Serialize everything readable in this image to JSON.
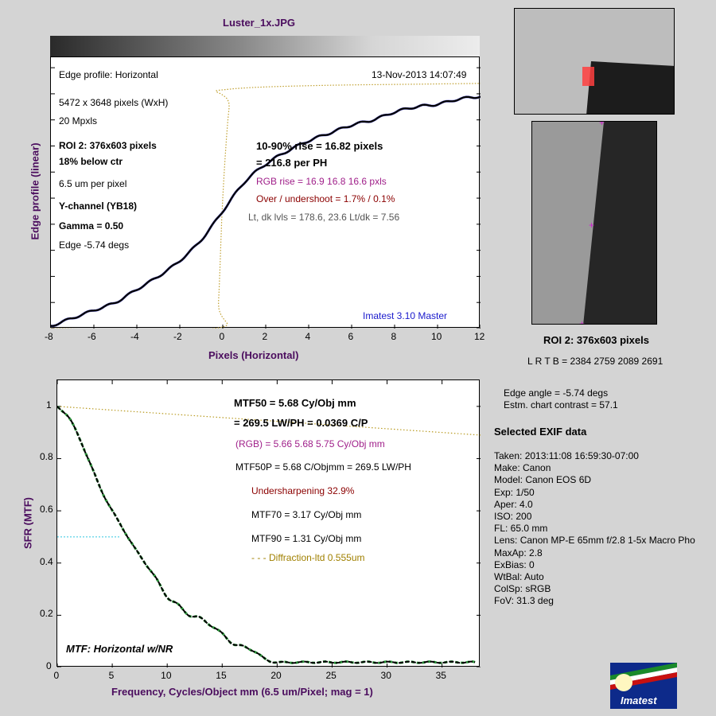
{
  "title": "Luster_1x.JPG",
  "edge": {
    "header_left": "Edge profile: Horizontal",
    "header_date": "13-Nov-2013 14:07:49",
    "info": [
      "5472 x 3648 pixels (WxH)",
      "20 Mpxls"
    ],
    "roi": [
      "ROI 2:  376x603 pixels",
      "18% below ctr"
    ],
    "um": "6.5 um per pixel",
    "channel": "Y-channel  (YB18)",
    "gamma": "Gamma = 0.50",
    "angle": "Edge -5.74 degs",
    "rise1": "10-90% rise = 16.82 pixels",
    "rise2": "= 216.8 per PH",
    "rgb_rise": "RGB rise = 16.9  16.8  16.6 pxls",
    "overshoot": "Over / undershoot = 1.7% / 0.1%",
    "levels": "Lt, dk lvls = 178.6, 23.6   Lt/dk = 7.56",
    "version": "Imatest 3.10 Master",
    "ylabel": "Edge profile (linear)",
    "xlabel": "Pixels (Horizontal)"
  },
  "roi_panel": {
    "label": "ROI 2:  376x603 pixels",
    "bounds": "L R  T B = 2384 2759  2089 2691"
  },
  "mtf": {
    "mtf50_line1": "MTF50 = 5.68 Cy/Obj mm",
    "mtf50_line2": "= 269.5 LW/PH = 0.0369 C/P",
    "rgb": "(RGB) = 5.66  5.68  5.75 Cy/Obj mm",
    "mtf50p": "MTF50P = 5.68 C/Objmm = 269.5 LW/PH",
    "undersharp": "Undersharpening 32.9%",
    "mtf70": "MTF70 = 3.17 Cy/Obj mm",
    "mtf90": "MTF90 = 1.31 Cy/Obj mm",
    "diffraction": "- - -  Diffraction-ltd  0.555um",
    "corner": "MTF: Horizontal w/NR",
    "ylabel": "SFR (MTF)",
    "xlabel": "Frequency, Cycles/Object mm  (6.5 um/Pixel;  mag = 1)"
  },
  "side": {
    "edge_angle": "Edge angle = -5.74 degs",
    "contrast": "Estm. chart contrast = 57.1",
    "exif_title": "Selected EXIF data",
    "exif": [
      "Taken: 2013:11:08 16:59:30-07:00",
      "Make:  Canon",
      "Model:  Canon EOS 6D",
      "Exp:     1/50",
      "Aper:   4.0",
      "ISO:    200",
      "FL:      65.0 mm",
      "Lens:    Canon MP-E 65mm f/2.8 1-5x Macro Pho",
      "MaxAp: 2.8",
      "ExBias: 0",
      "WtBal: Auto",
      "ColSp: sRGB",
      "FoV:   31.3 deg"
    ]
  },
  "logo": {
    "text": "Imatest"
  },
  "chart_data": [
    {
      "type": "line",
      "title": "Edge profile: Horizontal",
      "xlabel": "Pixels (Horizontal)",
      "ylabel": "Edge profile (linear)",
      "xlim": [
        -8,
        12
      ],
      "ylim": [
        0,
        1.04
      ],
      "xticks": [
        -8,
        -6,
        -4,
        -2,
        0,
        2,
        4,
        6,
        8,
        10,
        12
      ],
      "grid": false,
      "series": [
        {
          "x": [
            -8,
            -7,
            -6,
            -5,
            -4,
            -3,
            -2,
            -1,
            0,
            1,
            2,
            3,
            4,
            5,
            6,
            7,
            8,
            9,
            10,
            11,
            12
          ],
          "y": [
            0.01,
            0.04,
            0.07,
            0.1,
            0.15,
            0.2,
            0.26,
            0.34,
            0.45,
            0.56,
            0.63,
            0.68,
            0.72,
            0.75,
            0.78,
            0.8,
            0.83,
            0.85,
            0.86,
            0.88,
            0.89
          ]
        },
        {
          "x": [
            -8,
            -0.4,
            -0.2,
            0,
            0.3,
            0.6,
            12
          ],
          "y": [
            0,
            0,
            0.1,
            0.5,
            0.85,
            0.92,
            0.94
          ]
        }
      ]
    },
    {
      "type": "line",
      "title": "MTF: Horizontal w/NR",
      "xlabel": "Frequency, Cycles/Object mm  (6.5 um/Pixel;  mag = 1)",
      "ylabel": "SFR (MTF)",
      "xlim": [
        0,
        38.5
      ],
      "ylim": [
        0,
        1.1
      ],
      "xticks": [
        0,
        5,
        10,
        15,
        20,
        25,
        30,
        35
      ],
      "yticks": [
        0,
        0.2,
        0.4,
        0.6,
        0.8,
        1
      ],
      "grid": false,
      "series": [
        {
          "name": "MTF",
          "x": [
            0,
            1,
            2,
            3,
            4,
            5,
            6,
            7,
            8,
            9,
            10,
            11,
            12,
            13,
            14,
            15,
            16,
            17,
            18,
            19,
            20,
            22,
            25,
            28,
            30,
            33,
            35,
            38
          ],
          "y": [
            1.0,
            0.96,
            0.88,
            0.78,
            0.68,
            0.6,
            0.53,
            0.46,
            0.4,
            0.34,
            0.27,
            0.24,
            0.2,
            0.19,
            0.16,
            0.13,
            0.09,
            0.08,
            0.06,
            0.03,
            0.02,
            0.02,
            0.02,
            0.02,
            0.02,
            0.02,
            0.02,
            0.02
          ]
        },
        {
          "name": "Diffraction-ltd  0.555um",
          "x": [
            0,
            38.5
          ],
          "y": [
            1.0,
            0.89
          ]
        },
        {
          "name": "MTF50 reference",
          "x": [
            0,
            5.68
          ],
          "y": [
            0.5,
            0.5
          ]
        }
      ]
    }
  ]
}
